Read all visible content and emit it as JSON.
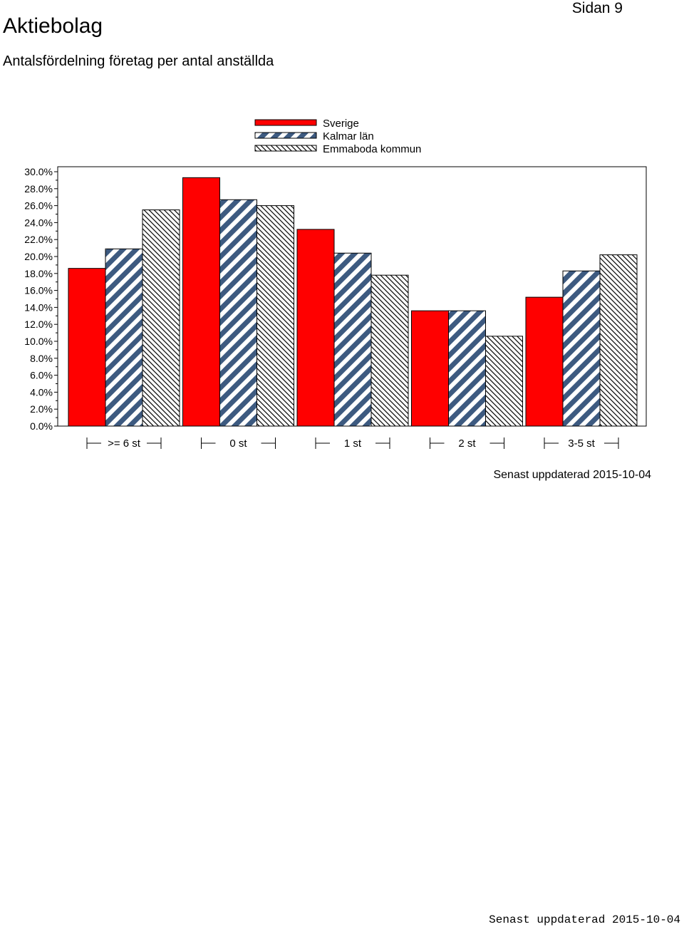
{
  "page": {
    "title": "Aktiebolag",
    "subtitle": "Antalsfördelning företag per antal anställda",
    "page_label": "Sidan 9",
    "updated": "Senast uppdaterad 2015-10-04",
    "footer": "Senast uppdaterad 2015-10-04"
  },
  "chart_data": {
    "type": "bar",
    "categories": [
      ">= 6 st",
      "0 st",
      "1 st",
      "2 st",
      "3-5 st"
    ],
    "series": [
      {
        "name": "Sverige",
        "values": [
          18.6,
          29.3,
          23.2,
          13.6,
          15.2
        ],
        "fill": "solid",
        "color": "#ff0000"
      },
      {
        "name": "Kalmar län",
        "values": [
          20.9,
          26.7,
          20.4,
          13.6,
          18.3
        ],
        "fill": "diagonal-stripes",
        "color": "#3d5a80"
      },
      {
        "name": "Emmaboda kommun",
        "values": [
          25.5,
          26.0,
          17.8,
          10.6,
          20.2
        ],
        "fill": "hatch",
        "color": "#000000"
      }
    ],
    "ylim": [
      0,
      30
    ],
    "yticks": [
      "0.0%",
      "2.0%",
      "4.0%",
      "6.0%",
      "8.0%",
      "10.0%",
      "12.0%",
      "14.0%",
      "16.0%",
      "18.0%",
      "20.0%",
      "22.0%",
      "24.0%",
      "26.0%",
      "28.0%",
      "30.0%"
    ],
    "legend_position": "top-center",
    "grid": false
  }
}
